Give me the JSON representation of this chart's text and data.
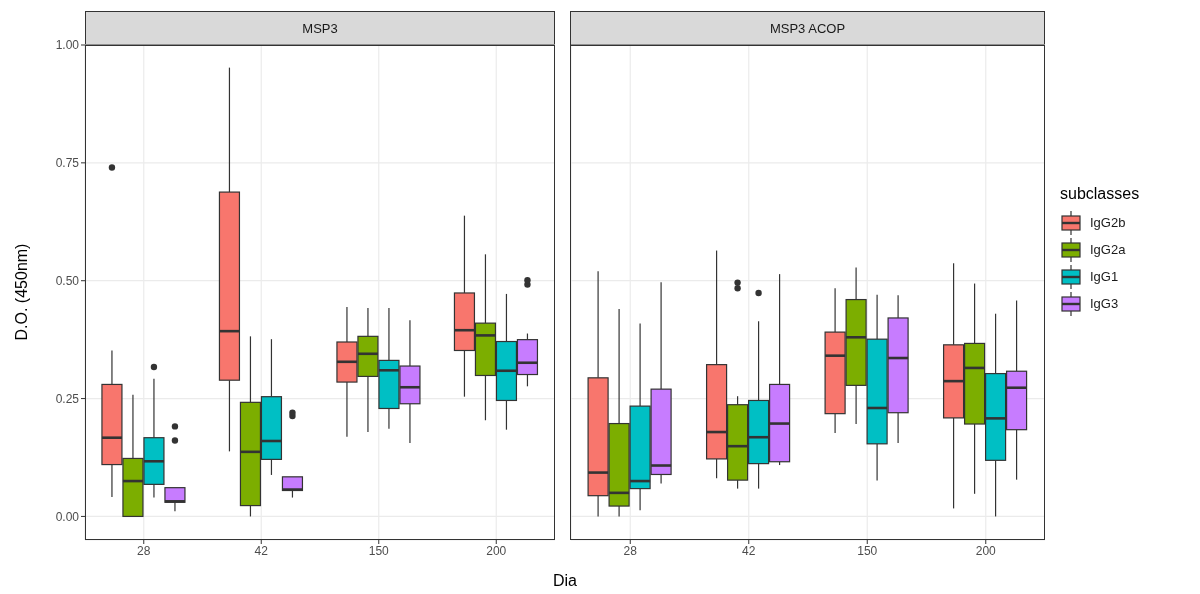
{
  "chart_data": [
    {
      "type": "box",
      "title": "MSP3",
      "xlabel": "Dia",
      "ylabel": "D.O. (450nm)",
      "categories": [
        "28",
        "42",
        "150",
        "200"
      ],
      "ylim": [
        -0.05,
        1.0
      ],
      "yticks": [
        {
          "value": 0,
          "label": "0.00"
        },
        {
          "value": 0.25,
          "label": "0.25"
        },
        {
          "value": 0.5,
          "label": "0.50"
        },
        {
          "value": 0.75,
          "label": "0.75"
        },
        {
          "value": 1,
          "label": "1.00"
        }
      ],
      "grid": true,
      "series": [
        {
          "color": "#f8766d",
          "boxes": [
            {
              "low": 0.041,
              "q1": 0.11,
              "median": 0.167,
              "q3": 0.28,
              "high": 0.352,
              "outliers": [
                0.74
              ]
            },
            {
              "low": 0.138,
              "q1": 0.289,
              "median": 0.393,
              "q3": 0.688,
              "high": 0.952
            },
            {
              "low": 0.169,
              "q1": 0.285,
              "median": 0.328,
              "q3": 0.37,
              "high": 0.444
            },
            {
              "low": 0.254,
              "q1": 0.352,
              "median": 0.395,
              "q3": 0.474,
              "high": 0.638
            }
          ]
        },
        {
          "color": "#7cae00",
          "boxes": [
            {
              "low": 0,
              "q1": 0,
              "median": 0.075,
              "q3": 0.123,
              "high": 0.258
            },
            {
              "low": 0,
              "q1": 0.023,
              "median": 0.137,
              "q3": 0.242,
              "high": 0.382
            },
            {
              "low": 0.179,
              "q1": 0.297,
              "median": 0.345,
              "q3": 0.382,
              "high": 0.442
            },
            {
              "low": 0.204,
              "q1": 0.299,
              "median": 0.384,
              "q3": 0.41,
              "high": 0.556
            }
          ]
        },
        {
          "color": "#00bfc4",
          "boxes": [
            {
              "low": 0.04,
              "q1": 0.068,
              "median": 0.117,
              "q3": 0.167,
              "high": 0.292,
              "outliers": [
                0.317
              ]
            },
            {
              "low": 0.088,
              "q1": 0.121,
              "median": 0.16,
              "q3": 0.254,
              "high": 0.376
            },
            {
              "low": 0.186,
              "q1": 0.229,
              "median": 0.31,
              "q3": 0.331,
              "high": 0.442
            },
            {
              "low": 0.184,
              "q1": 0.246,
              "median": 0.309,
              "q3": 0.371,
              "high": 0.472
            }
          ]
        },
        {
          "color": "#c77cff",
          "boxes": [
            {
              "low": 0.011,
              "q1": 0.03,
              "median": 0.032,
              "q3": 0.061,
              "high": 0.061,
              "outliers": [
                0.161,
                0.191
              ]
            },
            {
              "low": 0.04,
              "q1": 0.055,
              "median": 0.057,
              "q3": 0.084,
              "high": 0.084,
              "outliers": [
                0.213,
                0.22
              ]
            },
            {
              "low": 0.156,
              "q1": 0.239,
              "median": 0.274,
              "q3": 0.319,
              "high": 0.416
            },
            {
              "low": 0.276,
              "q1": 0.301,
              "median": 0.326,
              "q3": 0.375,
              "high": 0.388,
              "outliers": [
                0.492,
                0.501
              ]
            }
          ]
        }
      ]
    },
    {
      "type": "box",
      "title": "MSP3 ACOP",
      "categories": [
        "28",
        "42",
        "150",
        "200"
      ],
      "ylim": [
        -0.05,
        1.0
      ],
      "yticks": [
        0,
        0.25,
        0.5,
        0.75,
        1
      ],
      "grid": true,
      "tick_labels": "x",
      "legend": "right",
      "legend_title": "subclasses",
      "series": [
        {
          "name": "IgG2b",
          "color": "#f8766d",
          "boxes": [
            {
              "low": 0,
              "q1": 0.044,
              "median": 0.093,
              "q3": 0.294,
              "high": 0.52
            },
            {
              "low": 0.081,
              "q1": 0.122,
              "median": 0.179,
              "q3": 0.322,
              "high": 0.564
            },
            {
              "low": 0.177,
              "q1": 0.218,
              "median": 0.341,
              "q3": 0.391,
              "high": 0.484
            },
            {
              "low": 0.017,
              "q1": 0.209,
              "median": 0.287,
              "q3": 0.364,
              "high": 0.537
            }
          ]
        },
        {
          "name": "IgG2a",
          "color": "#7cae00",
          "boxes": [
            {
              "low": 0,
              "q1": 0.022,
              "median": 0.05,
              "q3": 0.197,
              "high": 0.44
            },
            {
              "low": 0.059,
              "q1": 0.077,
              "median": 0.149,
              "q3": 0.237,
              "high": 0.255,
              "outliers": [
                0.484,
                0.496
              ]
            },
            {
              "low": 0.196,
              "q1": 0.278,
              "median": 0.38,
              "q3": 0.46,
              "high": 0.528
            },
            {
              "low": 0.048,
              "q1": 0.196,
              "median": 0.315,
              "q3": 0.367,
              "high": 0.494
            }
          ]
        },
        {
          "name": "IgG1",
          "color": "#00bfc4",
          "boxes": [
            {
              "low": 0.013,
              "q1": 0.059,
              "median": 0.075,
              "q3": 0.234,
              "high": 0.409
            },
            {
              "low": 0.059,
              "q1": 0.112,
              "median": 0.168,
              "q3": 0.246,
              "high": 0.414,
              "outliers": [
                0.474
              ]
            },
            {
              "low": 0.076,
              "q1": 0.154,
              "median": 0.23,
              "q3": 0.376,
              "high": 0.47
            },
            {
              "low": 0,
              "q1": 0.119,
              "median": 0.208,
              "q3": 0.303,
              "high": 0.43
            }
          ]
        },
        {
          "name": "IgG3",
          "color": "#c77cff",
          "boxes": [
            {
              "low": 0.07,
              "q1": 0.089,
              "median": 0.108,
              "q3": 0.27,
              "high": 0.497
            },
            {
              "low": 0.109,
              "q1": 0.116,
              "median": 0.197,
              "q3": 0.28,
              "high": 0.514
            },
            {
              "low": 0.156,
              "q1": 0.22,
              "median": 0.336,
              "q3": 0.421,
              "high": 0.469
            },
            {
              "low": 0.078,
              "q1": 0.184,
              "median": 0.273,
              "q3": 0.308,
              "high": 0.458
            }
          ]
        }
      ]
    }
  ]
}
